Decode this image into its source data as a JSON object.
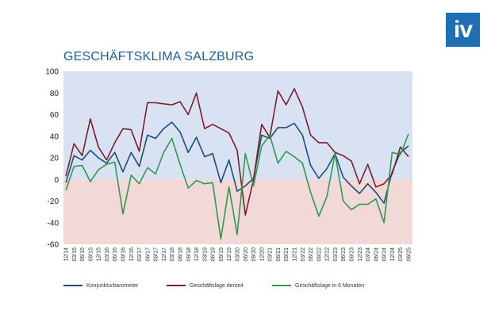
{
  "brand": {
    "logo_text": "iv"
  },
  "chart_data": {
    "type": "line",
    "title": "GESCHÄFTSKLIMA SALZBURG",
    "ylim": [
      -60,
      100
    ],
    "yticks": [
      100,
      80,
      60,
      40,
      20,
      0,
      -20,
      -40,
      -60
    ],
    "x": [
      "12/14",
      "03/15",
      "06/15",
      "09/15",
      "12/15",
      "03/16",
      "06/16",
      "09/16",
      "12/16",
      "03/17",
      "06/17",
      "09/17",
      "12/17",
      "03/18",
      "06/18",
      "09/18",
      "12/18",
      "03/19",
      "06/19",
      "09/19",
      "12/19",
      "03/20",
      "06/20",
      "09/20",
      "12/20",
      "03/21",
      "06/21",
      "09/21",
      "12/21",
      "03/22",
      "06/22",
      "09/22",
      "12/22",
      "03/23",
      "06/23",
      "09/23",
      "12/23",
      "03/24",
      "06/24",
      "09/24",
      "12/24",
      "03/25",
      "06/25"
    ],
    "background_bands": {
      "positive": "#d9e2f3",
      "negative": "#f2d9d7"
    },
    "series": [
      {
        "name": "Konjunkturbarometer",
        "color": "#1a4e7c",
        "values": [
          -3,
          22,
          18,
          27,
          20,
          15,
          25,
          7,
          25,
          12,
          41,
          38,
          47,
          53,
          44,
          25,
          39,
          21,
          24,
          -3,
          18,
          -11,
          -6,
          1,
          41,
          38,
          48,
          48,
          52,
          41,
          13,
          1,
          10,
          24,
          2,
          -6,
          -13,
          -4,
          -12,
          -22,
          7,
          25,
          31
        ]
      },
      {
        "name": "Geschäftslage derzeit",
        "color": "#7b1e2e",
        "values": [
          3,
          33,
          22,
          56,
          30,
          18,
          34,
          47,
          46,
          26,
          71,
          71,
          70,
          69,
          72,
          60,
          80,
          47,
          51,
          47,
          43,
          27,
          -33,
          0,
          51,
          39,
          82,
          69,
          84,
          67,
          41,
          34,
          34,
          25,
          22,
          17,
          -4,
          14,
          -7,
          -4,
          5,
          30,
          21
        ]
      },
      {
        "name": "Geschäftslage in 6 Monaten",
        "color": "#2e9a4e",
        "values": [
          -10,
          12,
          13,
          -2,
          9,
          14,
          16,
          -32,
          4,
          -4,
          11,
          5,
          25,
          38,
          14,
          -8,
          -1,
          -4,
          -3,
          -55,
          -7,
          -51,
          24,
          -6,
          31,
          41,
          15,
          26,
          21,
          15,
          -12,
          -34,
          -16,
          24,
          -20,
          -28,
          -23,
          -23,
          -18,
          -40,
          25,
          23,
          42
        ]
      }
    ]
  }
}
